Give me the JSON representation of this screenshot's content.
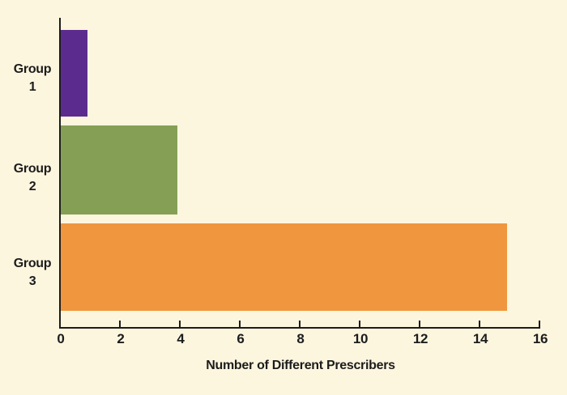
{
  "chart_data": {
    "type": "bar",
    "orientation": "horizontal",
    "title": "",
    "categories": [
      "Group 1",
      "Group 2",
      "Group 3"
    ],
    "category_labels_two_line": [
      "Group\n1",
      "Group\n2",
      "Group\n3"
    ],
    "values": [
      0.9,
      3.9,
      14.9
    ],
    "bar_colors": [
      "#5B2C8E",
      "#85A055",
      "#F0963E"
    ],
    "xlabel": "Number of Different Prescribers",
    "ylabel": "",
    "xlim": [
      0,
      16
    ],
    "xticks": [
      0,
      2,
      4,
      6,
      8,
      10,
      12,
      14,
      16
    ],
    "grid": false,
    "legend": "none"
  },
  "colors": {
    "background": "#FDF6DF",
    "axis": "#1C1C1C",
    "text": "#1C1C1C"
  }
}
